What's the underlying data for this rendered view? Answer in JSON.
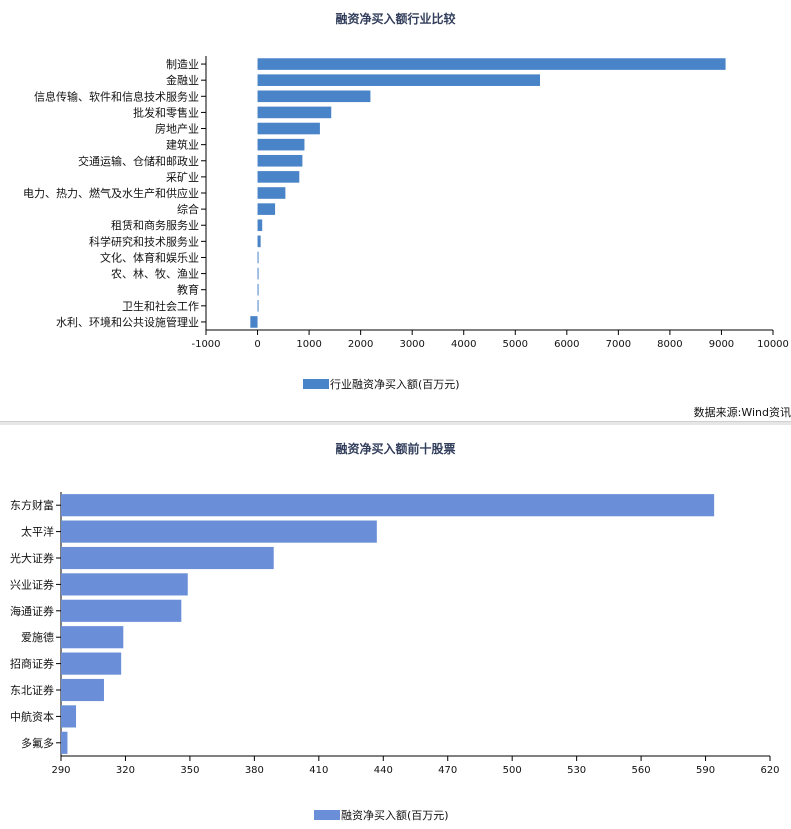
{
  "chart_data": [
    {
      "type": "bar",
      "orientation": "horizontal",
      "title": "融资净买入额行业比较",
      "categories": [
        "制造业",
        "金融业",
        "信息传输、软件和信息技术服务业",
        "批发和零售业",
        "房地产业",
        "建筑业",
        "交通运输、仓储和邮政业",
        "采矿业",
        "电力、热力、燃气及水生产和供应业",
        "综合",
        "租赁和商务服务业",
        "科学研究和技术服务业",
        "文化、体育和娱乐业",
        "农、林、牧、渔业",
        "教育",
        "卫生和社会工作",
        "水利、环境和公共设施管理业"
      ],
      "series": [
        {
          "name": "行业融资净买入额(百万元)",
          "values": [
            9080,
            5480,
            2190,
            1430,
            1210,
            910,
            870,
            810,
            540,
            340,
            90,
            60,
            10,
            10,
            5,
            10,
            -140
          ]
        }
      ],
      "xlim": [
        -1000,
        10000
      ],
      "xticks": [
        -1000,
        0,
        1000,
        2000,
        3000,
        4000,
        5000,
        6000,
        7000,
        8000,
        9000,
        10000
      ],
      "grid": false,
      "legend_position": "bottom-center",
      "color": "#4a84c8"
    },
    {
      "type": "bar",
      "orientation": "horizontal",
      "title": "融资净买入额前十股票",
      "categories": [
        "东方财富",
        "太平洋",
        "光大证券",
        "兴业证券",
        "海通证券",
        "爱施德",
        "招商证券",
        "东北证券",
        "中航资本",
        "多氟多"
      ],
      "series": [
        {
          "name": "融资净买入额(百万元)",
          "values": [
            594,
            437,
            389,
            349,
            346,
            319,
            318,
            310,
            297,
            293
          ]
        }
      ],
      "xlim": [
        290,
        620
      ],
      "xticks": [
        290,
        320,
        350,
        380,
        410,
        440,
        470,
        500,
        530,
        560,
        590,
        620
      ],
      "grid": false,
      "legend_position": "bottom-center",
      "color": "#6a8fd8"
    }
  ],
  "source_note": "数据来源:Wind资讯"
}
